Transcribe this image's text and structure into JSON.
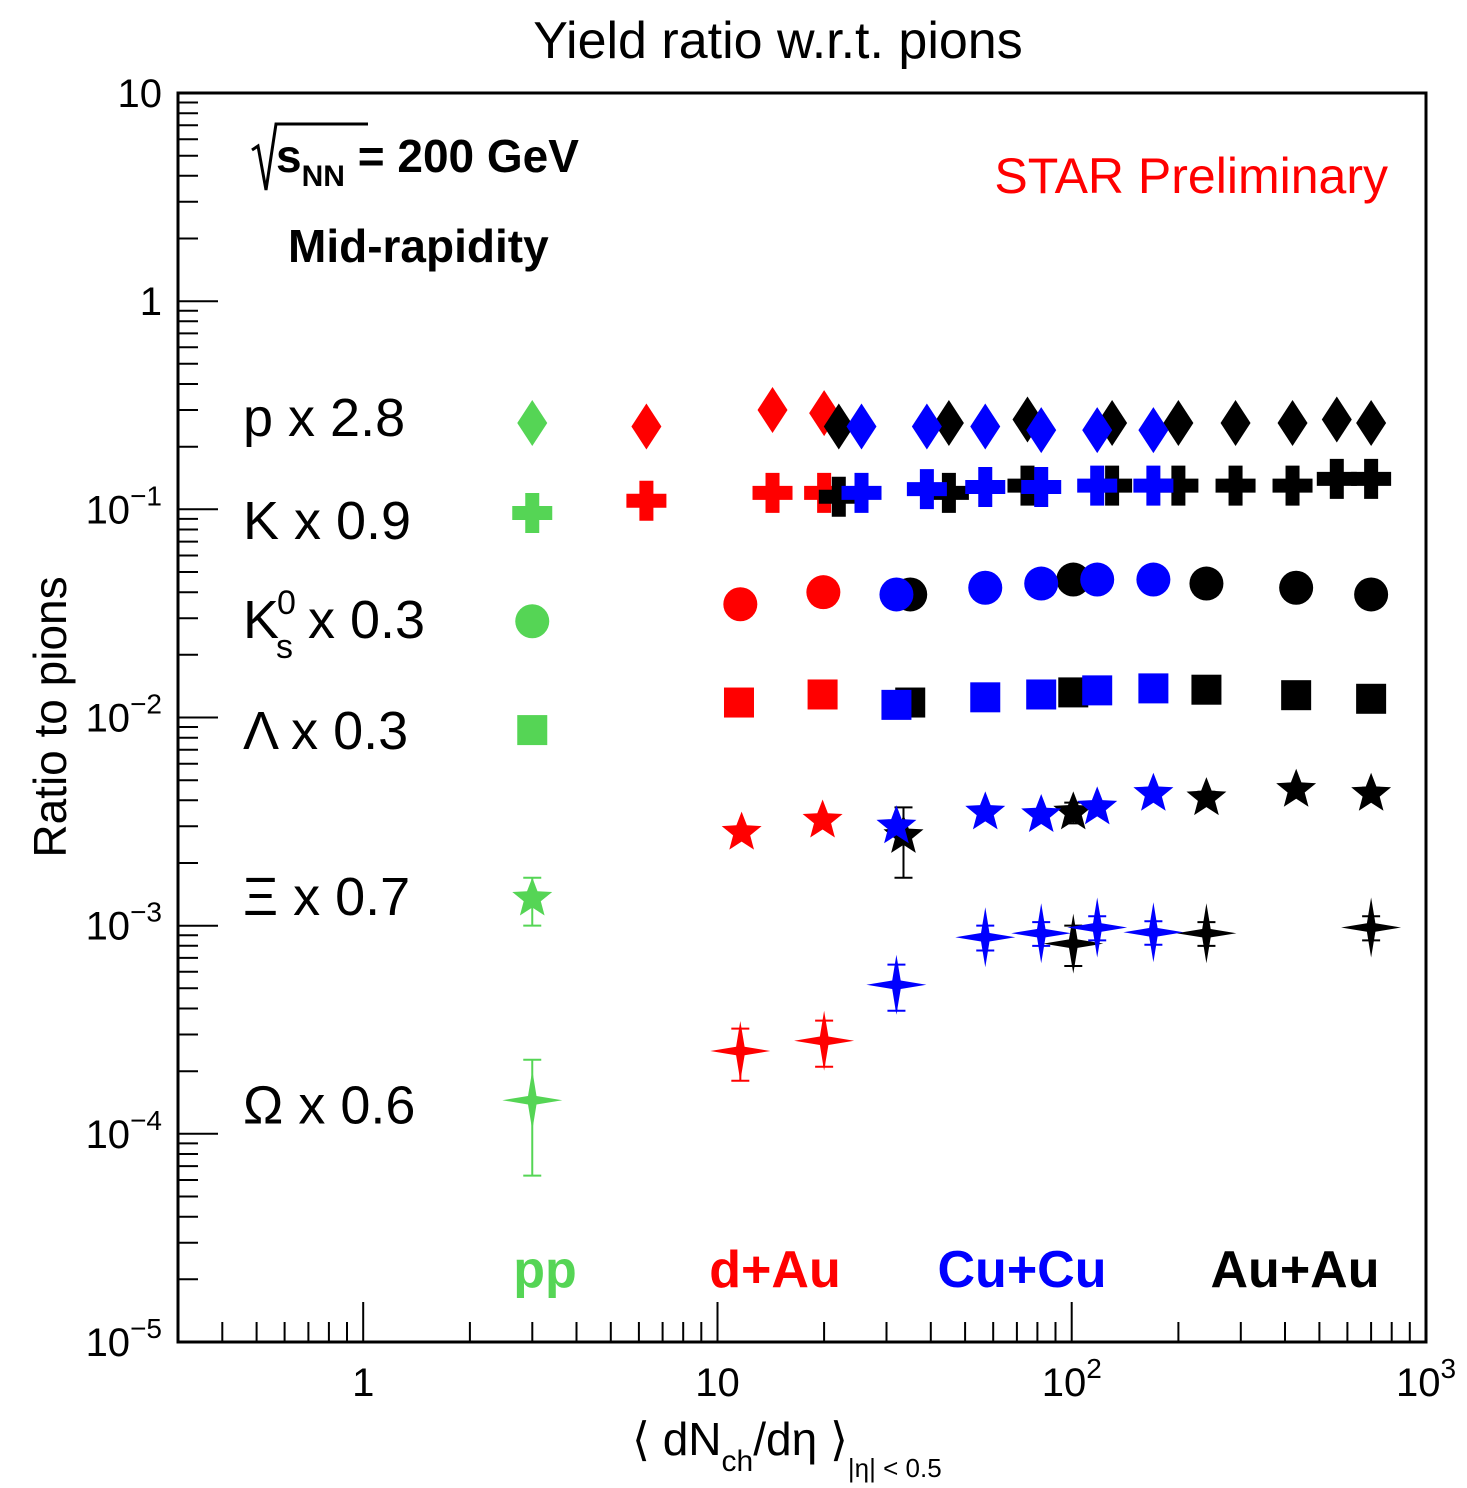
{
  "chart_data": {
    "type": "scatter",
    "title": "Yield ratio w.r.t. pions",
    "xlabel": "⟨ dN",
    "xlabel_sub1": "ch",
    "xlabel_mid": "/dη ⟩",
    "xlabel_sub2": "|η| < 0.5",
    "ylabel": "Ratio to pions",
    "xscale": "log",
    "yscale": "log",
    "xlim": [
      0.3,
      1000
    ],
    "ylim": [
      1e-05,
      10
    ],
    "x_tick_labels": [
      {
        "value": 1,
        "base": "1",
        "exp": ""
      },
      {
        "value": 10,
        "base": "10",
        "exp": ""
      },
      {
        "value": 100,
        "base": "10",
        "exp": "2"
      },
      {
        "value": 1000,
        "base": "10",
        "exp": "3"
      }
    ],
    "y_tick_labels": [
      {
        "value": 10,
        "base": "10",
        "exp": ""
      },
      {
        "value": 1,
        "base": "1",
        "exp": ""
      },
      {
        "value": 0.1,
        "base": "10",
        "exp": "−1"
      },
      {
        "value": 0.01,
        "base": "10",
        "exp": "−2"
      },
      {
        "value": 0.001,
        "base": "10",
        "exp": "−3"
      },
      {
        "value": 0.0001,
        "base": "10",
        "exp": "−4"
      },
      {
        "value": 1e-05,
        "base": "10",
        "exp": "−5"
      }
    ],
    "annotations": {
      "energy_prefix": "s",
      "energy_sub": "NN",
      "energy_value": " = 200 GeV",
      "rapidity": "Mid-rapidity",
      "preliminary": "STAR Preliminary"
    },
    "systems": [
      {
        "label": "pp",
        "color": "#55d555"
      },
      {
        "label": "d+Au",
        "color": "#ff0000"
      },
      {
        "label": "Cu+Cu",
        "color": "#0000ff"
      },
      {
        "label": "Au+Au",
        "color": "#000000"
      }
    ],
    "species": [
      {
        "label": "p x 2.8",
        "marker": "diamond",
        "legend_y": 0.28
      },
      {
        "label": "K x 0.9",
        "marker": "cross",
        "legend_y": 0.09
      },
      {
        "label": "K",
        "sup": "0",
        "sub": "s",
        "rest": " x 0.3",
        "marker": "circle",
        "legend_y": 0.03
      },
      {
        "label": "Λ x 0.3",
        "marker": "square",
        "legend_y": 0.0088
      },
      {
        "label": "Ξ x 0.7",
        "marker": "star",
        "legend_y": 0.0014
      },
      {
        "label": "Ω x 0.6",
        "marker": "star4",
        "legend_y": 0.00014
      }
    ],
    "series": [
      {
        "system": "pp",
        "species": "p",
        "x": [
          3.0
        ],
        "y": [
          0.26
        ]
      },
      {
        "system": "pp",
        "species": "K",
        "x": [
          3.0
        ],
        "y": [
          0.096
        ]
      },
      {
        "system": "pp",
        "species": "K0s",
        "x": [
          3.0
        ],
        "y": [
          0.029
        ]
      },
      {
        "system": "pp",
        "species": "Lambda",
        "x": [
          3.0
        ],
        "y": [
          0.0087
        ]
      },
      {
        "system": "pp",
        "species": "Xi",
        "x": [
          3.0
        ],
        "y": [
          0.00135
        ],
        "err": [
          0.00035
        ]
      },
      {
        "system": "pp",
        "species": "Omega",
        "x": [
          3.0
        ],
        "y": [
          0.000145
        ],
        "err": [
          8.2e-05
        ]
      },
      {
        "system": "d+Au",
        "species": "p",
        "x": [
          6.3,
          14.3,
          20.0
        ],
        "y": [
          0.25,
          0.3,
          0.29
        ]
      },
      {
        "system": "d+Au",
        "species": "K",
        "x": [
          6.3,
          14.3,
          20.0
        ],
        "y": [
          0.11,
          0.12,
          0.12
        ]
      },
      {
        "system": "d+Au",
        "species": "K0s",
        "x": [
          11.6,
          19.9
        ],
        "y": [
          0.035,
          0.04
        ]
      },
      {
        "system": "d+Au",
        "species": "Lambda",
        "x": [
          11.5,
          19.8
        ],
        "y": [
          0.0118,
          0.0129
        ]
      },
      {
        "system": "d+Au",
        "species": "Xi",
        "x": [
          11.7,
          19.8
        ],
        "y": [
          0.0028,
          0.0032
        ]
      },
      {
        "system": "d+Au",
        "species": "Omega",
        "x": [
          11.6,
          20.0
        ],
        "y": [
          0.00025,
          0.00028
        ],
        "err": [
          7e-05,
          7e-05
        ]
      },
      {
        "system": "Cu+Cu",
        "species": "p",
        "x": [
          25.5,
          39.0,
          57.0,
          82.0,
          118.0,
          170.0
        ],
        "y": [
          0.25,
          0.25,
          0.25,
          0.24,
          0.24,
          0.24
        ]
      },
      {
        "system": "Cu+Cu",
        "species": "K",
        "x": [
          25.5,
          39.0,
          57.0,
          82.0,
          118.0,
          170.0
        ],
        "y": [
          0.12,
          0.125,
          0.128,
          0.128,
          0.13,
          0.13
        ]
      },
      {
        "system": "Cu+Cu",
        "species": "K0s",
        "x": [
          32.0,
          57.0,
          82.0,
          118.0,
          170.0
        ],
        "y": [
          0.039,
          0.042,
          0.044,
          0.046,
          0.046
        ]
      },
      {
        "system": "Cu+Cu",
        "species": "Lambda",
        "x": [
          32.0,
          57.0,
          82.0,
          118.0,
          170.0
        ],
        "y": [
          0.0115,
          0.0125,
          0.0129,
          0.0135,
          0.0138
        ]
      },
      {
        "system": "Cu+Cu",
        "species": "Xi",
        "x": [
          32.0,
          57.0,
          82.0,
          118.0,
          170.0
        ],
        "y": [
          0.003,
          0.0035,
          0.0034,
          0.0037,
          0.0043
        ]
      },
      {
        "system": "Cu+Cu",
        "species": "Omega",
        "x": [
          32.0,
          57.0,
          82.0,
          118.0,
          170.0
        ],
        "y": [
          0.00052,
          0.00088,
          0.00092,
          0.00098,
          0.00093
        ],
        "err": [
          0.00013,
          0.00012,
          0.00012,
          0.00013,
          0.00012
        ]
      },
      {
        "system": "Au+Au",
        "species": "p",
        "x": [
          22.0,
          45.0,
          75.0,
          130.0,
          200.0,
          290.0,
          420.0,
          560.0,
          700.0
        ],
        "y": [
          0.25,
          0.26,
          0.27,
          0.26,
          0.26,
          0.26,
          0.26,
          0.27,
          0.26
        ]
      },
      {
        "system": "Au+Au",
        "species": "K",
        "x": [
          22.0,
          45.0,
          75.0,
          130.0,
          200.0,
          290.0,
          420.0,
          560.0,
          700.0
        ],
        "y": [
          0.115,
          0.12,
          0.13,
          0.13,
          0.13,
          0.13,
          0.13,
          0.14,
          0.14
        ]
      },
      {
        "system": "Au+Au",
        "species": "K0s",
        "x": [
          35.0,
          101.0,
          240.0,
          430.0,
          700.0
        ],
        "y": [
          0.039,
          0.046,
          0.044,
          0.042,
          0.039
        ]
      },
      {
        "system": "Au+Au",
        "species": "Lambda",
        "x": [
          35.0,
          101.0,
          240.0,
          430.0,
          700.0
        ],
        "y": [
          0.0118,
          0.0132,
          0.0136,
          0.0128,
          0.0123
        ]
      },
      {
        "system": "Au+Au",
        "species": "Xi",
        "x": [
          33.5,
          101.0,
          240.0,
          430.0,
          700.0
        ],
        "y": [
          0.0027,
          0.0035,
          0.0041,
          0.0045,
          0.0043
        ],
        "err": [
          0.001,
          0.0004,
          0.0003,
          0.0003,
          0.0003
        ]
      },
      {
        "system": "Au+Au",
        "species": "Omega",
        "x": [
          101.0,
          240.0,
          700.0
        ],
        "y": [
          0.00082,
          0.00092,
          0.00098
        ],
        "err": [
          0.00018,
          0.00012,
          0.00013
        ]
      }
    ]
  }
}
